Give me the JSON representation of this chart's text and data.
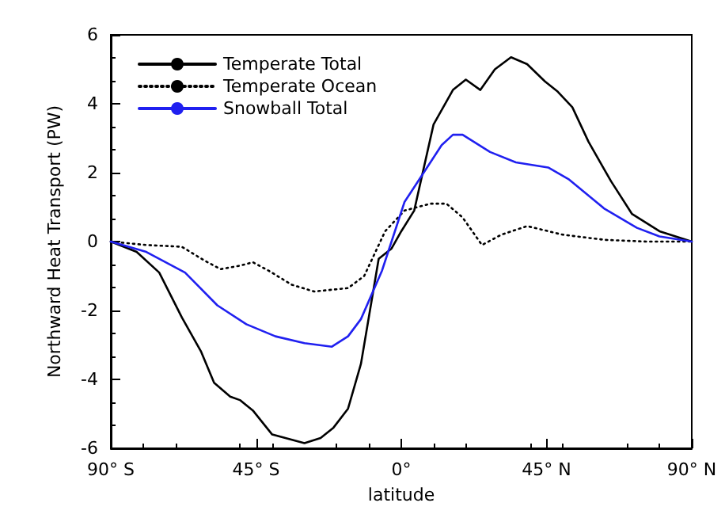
{
  "chart_data": {
    "type": "line",
    "xlabel": "latitude",
    "ylabel": "Northward Heat Transport (PW)",
    "xlim": [
      -90,
      90
    ],
    "xticks": [
      {
        "value": -90,
        "label": "90° S"
      },
      {
        "value": -45,
        "label": "45° S"
      },
      {
        "value": 0,
        "label": "0°"
      },
      {
        "value": 45,
        "label": "45° N"
      },
      {
        "value": 90,
        "label": "90° N"
      }
    ],
    "ylim": [
      -6,
      6
    ],
    "yticks": [
      -6,
      -4,
      -2,
      0,
      2,
      4,
      6
    ],
    "grid": false,
    "legend": "top left",
    "marker": "none",
    "series": [
      {
        "name": "Temperate Total",
        "color": "#000000",
        "line_style": "solid",
        "x": [
          -90,
          -82,
          -75,
          -68,
          -62,
          -58,
          -53,
          -50,
          -46,
          -40,
          -30,
          -25,
          -21,
          -16.5,
          -12.5,
          -7,
          -3,
          0,
          4,
          10,
          16,
          20,
          24.5,
          29,
          34,
          39,
          44.5,
          48.5,
          53,
          58,
          65,
          71.5,
          80,
          90
        ],
        "values": [
          0,
          -0.3,
          -0.9,
          -2.2,
          -3.2,
          -4.1,
          -4.5,
          -4.6,
          -4.9,
          -5.6,
          -5.85,
          -5.7,
          -5.4,
          -4.85,
          -3.55,
          -0.5,
          -0.2,
          0.3,
          0.9,
          3.4,
          4.4,
          4.7,
          4.4,
          5.0,
          5.35,
          5.15,
          4.65,
          4.35,
          3.9,
          2.9,
          1.75,
          0.8,
          0.3,
          0
        ]
      },
      {
        "name": "Temperate Ocean",
        "color": "#000000",
        "line_style": "dotted",
        "x": [
          -90,
          -79,
          -68,
          -61,
          -56,
          -50,
          -46,
          -41,
          -34,
          -27,
          -16.5,
          -11.5,
          -5,
          1,
          9,
          14,
          19,
          25,
          31,
          39,
          50,
          63,
          76,
          90
        ],
        "values": [
          0,
          -0.1,
          -0.15,
          -0.55,
          -0.8,
          -0.7,
          -0.6,
          -0.85,
          -1.25,
          -1.45,
          -1.35,
          -1.0,
          0.3,
          0.9,
          1.1,
          1.1,
          0.7,
          -0.1,
          0.2,
          0.45,
          0.2,
          0.05,
          0,
          0
        ]
      },
      {
        "name": "Snowball Total",
        "color": "#2020f0",
        "line_style": "solid",
        "x": [
          -90,
          -79,
          -67,
          -57,
          -48,
          -39,
          -30,
          -21.5,
          -16.5,
          -12.5,
          -6,
          1,
          4.5,
          12.5,
          16,
          19,
          27.5,
          35.5,
          45.5,
          52,
          63,
          73,
          80,
          90
        ],
        "values": [
          0,
          -0.3,
          -0.9,
          -1.85,
          -2.4,
          -2.75,
          -2.95,
          -3.05,
          -2.75,
          -2.25,
          -0.85,
          1.15,
          1.65,
          2.8,
          3.1,
          3.1,
          2.6,
          2.3,
          2.15,
          1.8,
          0.95,
          0.4,
          0.15,
          0
        ]
      }
    ]
  }
}
